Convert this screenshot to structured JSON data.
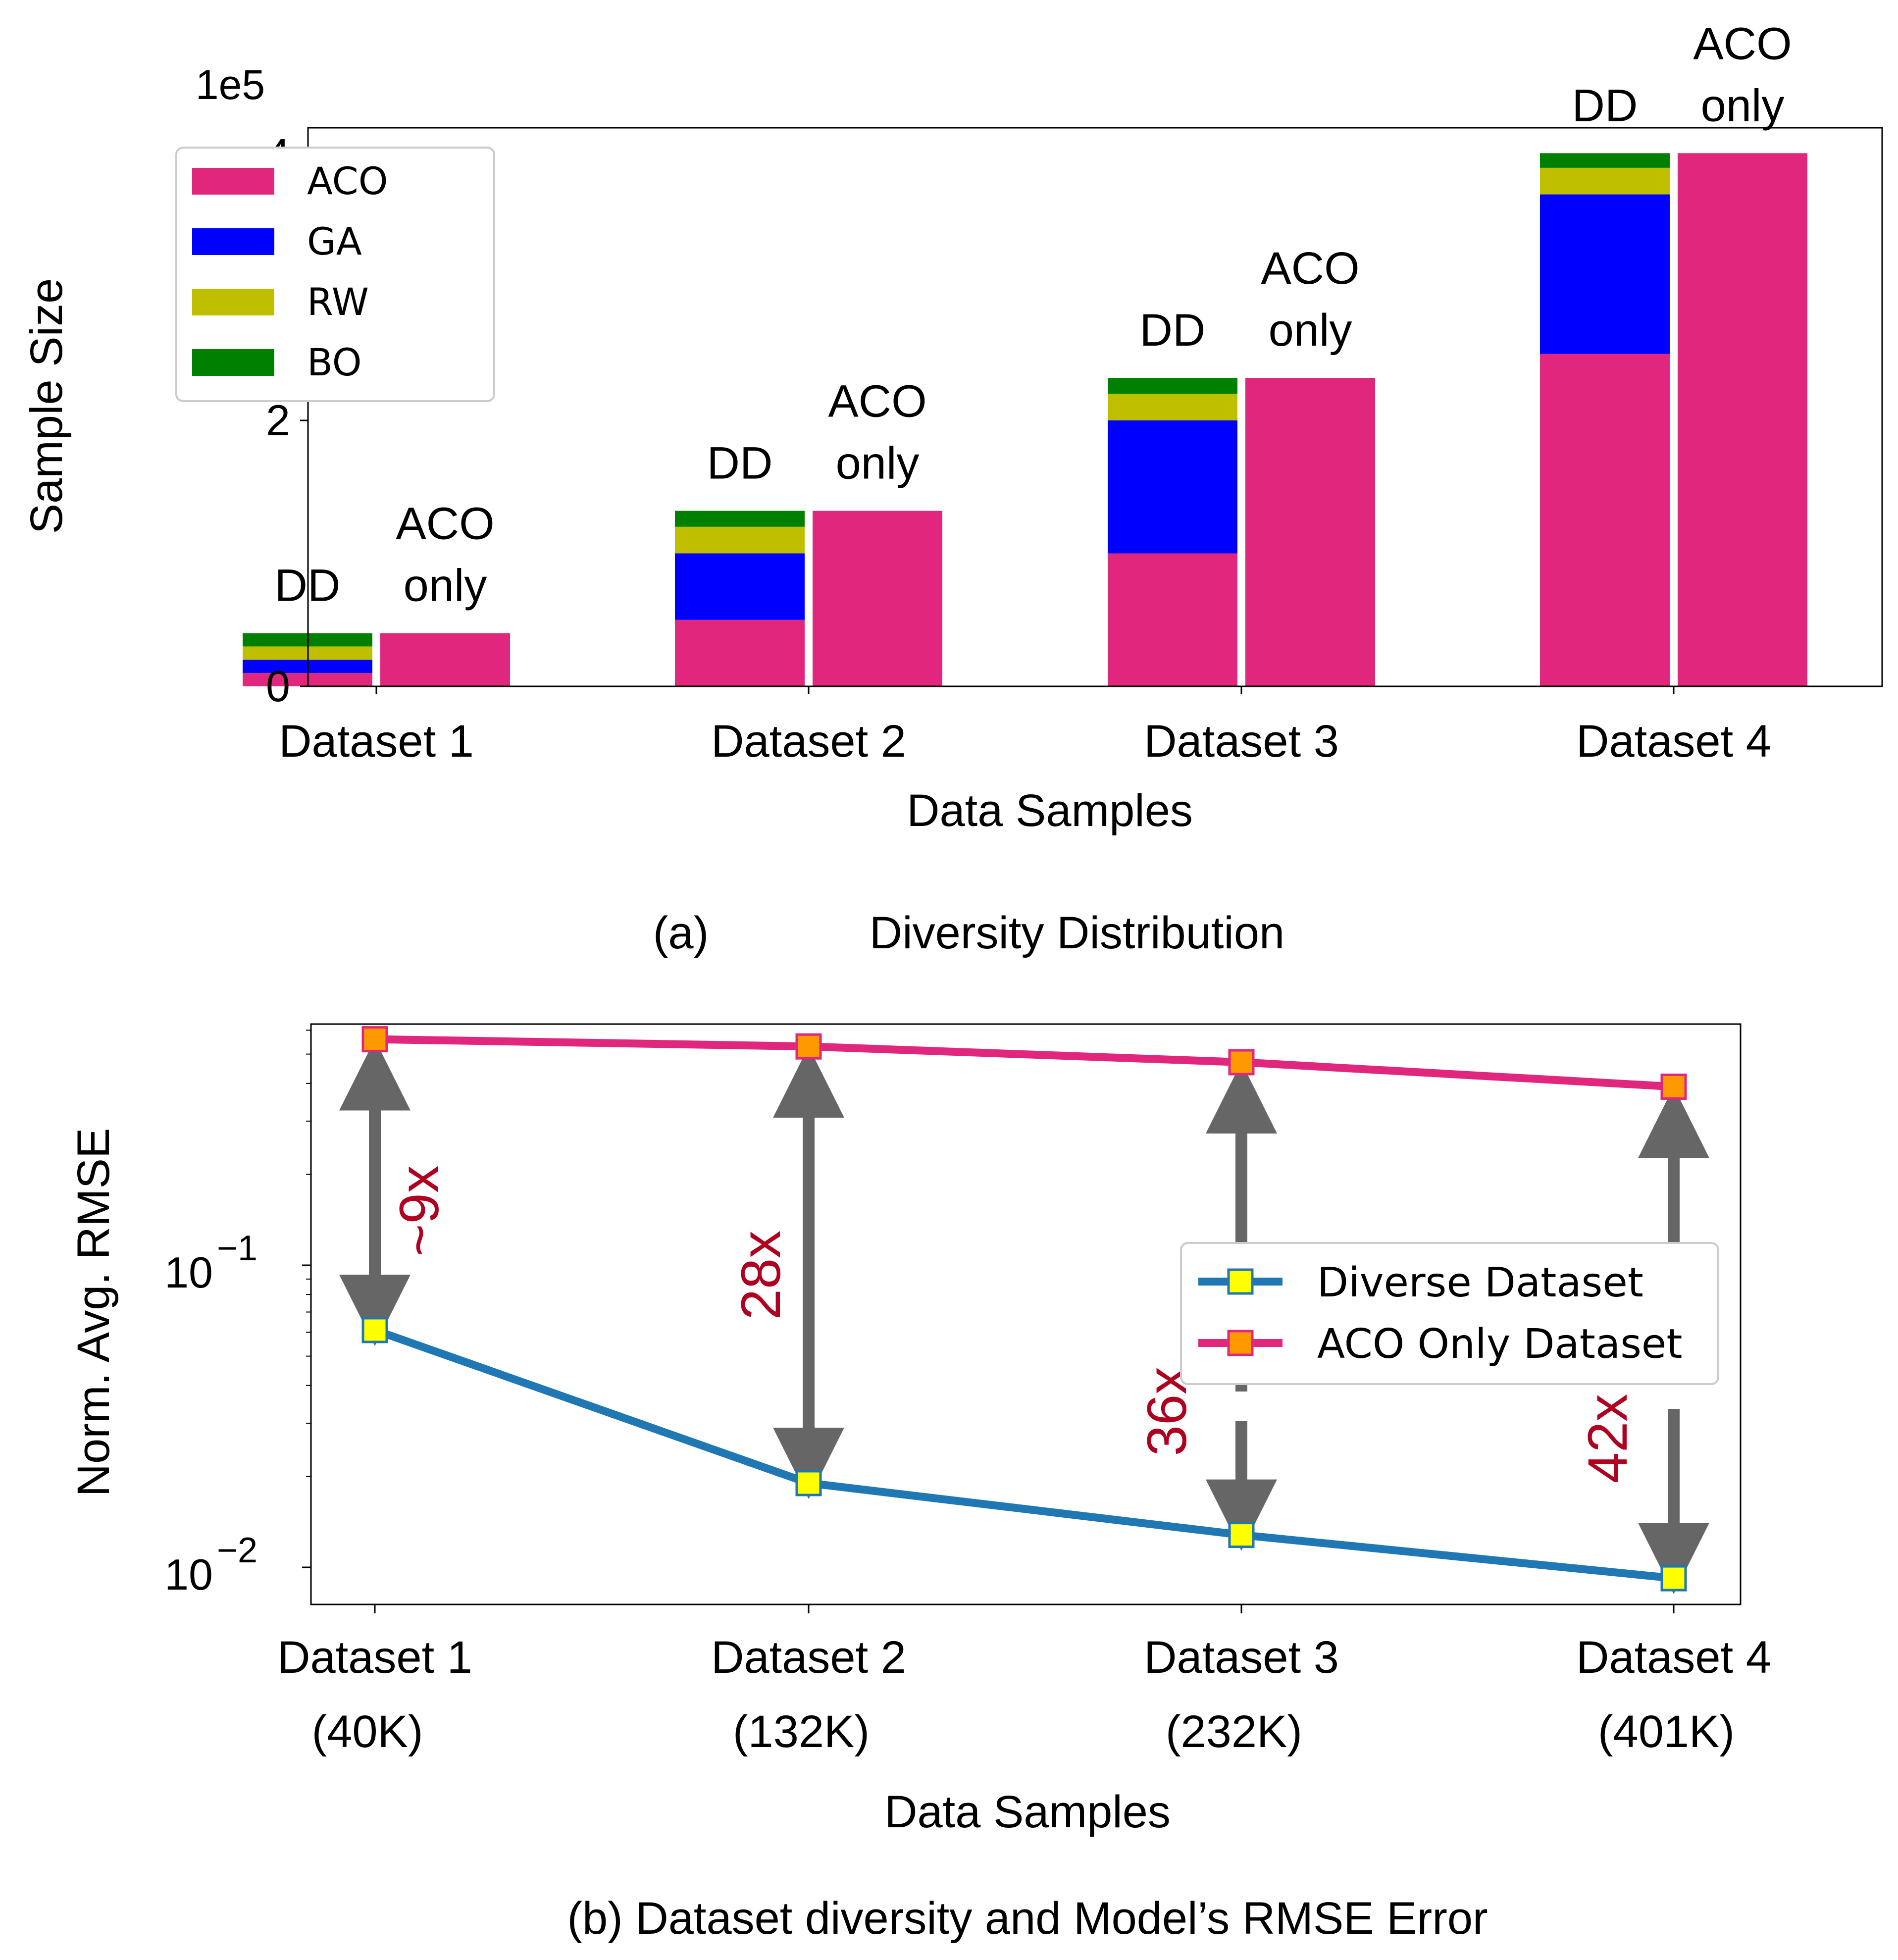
{
  "chart_data": [
    {
      "type": "bar",
      "stacked": true,
      "title": "Diversity Distribution",
      "caption_prefix": "(a)",
      "xlabel": "Data Samples",
      "ylabel": "Sample Size",
      "y_scale_label": "1e5",
      "ylim": [
        0,
        4.2
      ],
      "yticks": [
        0,
        2,
        4
      ],
      "ytick_labels": [
        "0",
        "2",
        "4"
      ],
      "categories": [
        "Dataset 1",
        "Dataset 2",
        "Dataset 3",
        "Dataset 4"
      ],
      "bar_labels": {
        "dd": "DD",
        "aco_only_line1": "ACO",
        "aco_only_line2": "only"
      },
      "series": [
        {
          "name": "ACO",
          "color": "#e0267d",
          "values": [
            0.1,
            0.5,
            1.0,
            2.5
          ]
        },
        {
          "name": "GA",
          "color": "#0000ff",
          "values": [
            0.1,
            0.5,
            1.0,
            1.2
          ]
        },
        {
          "name": "RW",
          "color": "#bfbf00",
          "values": [
            0.1,
            0.2,
            0.2,
            0.2
          ]
        },
        {
          "name": "BO",
          "color": "#008000",
          "values": [
            0.1,
            0.12,
            0.12,
            0.11
          ]
        }
      ],
      "aco_only_values": [
        0.4,
        1.32,
        2.32,
        4.01
      ],
      "legend": [
        "ACO",
        "GA",
        "RW",
        "BO"
      ],
      "legend_position": "upper-left"
    },
    {
      "type": "line",
      "y_scale": "log",
      "title": "(b) Dataset diversity and Model’s RMSE Error",
      "xlabel": "Data Samples",
      "ylabel": "Norm. Avg. RMSE",
      "ylim": [
        0.0085,
        0.7
      ],
      "yticks": [
        0.1,
        0.01
      ],
      "ytick_labels": [
        {
          "base": "10",
          "exp": "−1"
        },
        {
          "base": "10",
          "exp": "−2"
        }
      ],
      "categories": [
        {
          "name": "Dataset 1",
          "size": "(40K)"
        },
        {
          "name": "Dataset 2",
          "size": "(132K)"
        },
        {
          "name": "Dataset 3",
          "size": "(232K)"
        },
        {
          "name": "Dataset 4",
          "size": "(401K)"
        }
      ],
      "series": [
        {
          "name": "Diverse Dataset",
          "color": "#1f77b4",
          "marker_color": "#ffff00",
          "values": [
            0.061,
            0.019,
            0.0128,
            0.0092
          ]
        },
        {
          "name": "ACO Only Dataset",
          "color": "#e0267d",
          "marker_color": "#ff9900",
          "values": [
            0.56,
            0.53,
            0.47,
            0.39
          ]
        }
      ],
      "annotations": [
        "~9x",
        "28x",
        "36x",
        "42x"
      ],
      "annotation_color": "#b00020",
      "legend_position": "center-right"
    }
  ]
}
